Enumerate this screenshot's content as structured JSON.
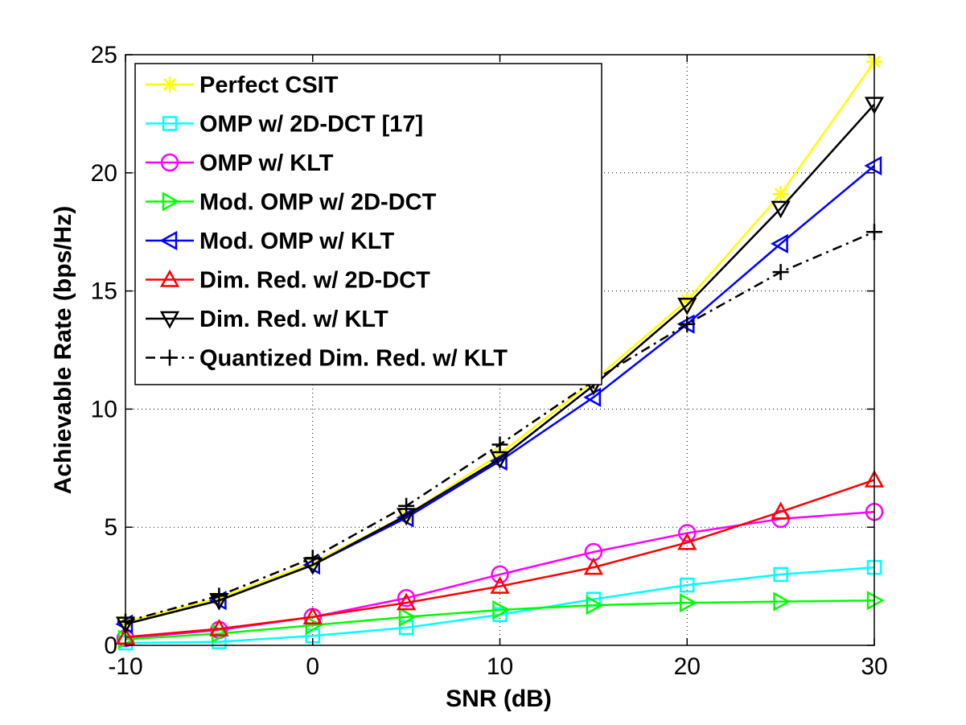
{
  "chart_data": {
    "type": "line",
    "title": "",
    "xlabel": "SNR (dB)",
    "ylabel": "Achievable Rate (bps/Hz)",
    "xlim": [
      -10,
      30
    ],
    "ylim": [
      0,
      25
    ],
    "xticks": [
      -10,
      0,
      10,
      20,
      30
    ],
    "xtick_labels": [
      "-10",
      "0",
      "10",
      "20",
      "30"
    ],
    "yticks": [
      0,
      5,
      10,
      15,
      20,
      25
    ],
    "ytick_labels": [
      "0",
      "5",
      "10",
      "15",
      "20",
      "25"
    ],
    "grid": true,
    "legend_position": "top-left",
    "x": [
      -10,
      -5,
      0,
      5,
      10,
      15,
      20,
      25,
      30
    ],
    "series": [
      {
        "name": "Perfect CSIT",
        "color": "#ffff00",
        "marker": "asterisk",
        "dash": "solid",
        "values": [
          1.0,
          2.0,
          3.5,
          5.5,
          8.1,
          11.2,
          14.6,
          19.1,
          24.7
        ]
      },
      {
        "name": "OMP w/ 2D-DCT [17]",
        "color": "#00ffff",
        "marker": "square",
        "dash": "solid",
        "values": [
          0.1,
          0.15,
          0.4,
          0.75,
          1.3,
          1.95,
          2.55,
          3.0,
          3.3
        ]
      },
      {
        "name": "OMP w/ KLT",
        "color": "#ff00ff",
        "marker": "circle",
        "dash": "solid",
        "values": [
          0.3,
          0.65,
          1.2,
          2.0,
          3.0,
          3.95,
          4.75,
          5.35,
          5.65
        ]
      },
      {
        "name": "Mod. OMP w/ 2D-DCT",
        "color": "#00ff00",
        "marker": "triangle-right",
        "dash": "solid",
        "values": [
          0.25,
          0.5,
          0.85,
          1.2,
          1.5,
          1.7,
          1.8,
          1.85,
          1.9
        ]
      },
      {
        "name": "Mod. OMP w/ KLT",
        "color": "#0000ff",
        "marker": "triangle-left",
        "dash": "solid",
        "values": [
          0.9,
          1.9,
          3.4,
          5.4,
          7.8,
          10.5,
          13.6,
          17.0,
          20.3
        ]
      },
      {
        "name": "Dim. Red. w/ 2D-DCT",
        "color": "#ff0000",
        "marker": "triangle-up",
        "dash": "solid",
        "values": [
          0.35,
          0.7,
          1.2,
          1.8,
          2.5,
          3.3,
          4.35,
          5.65,
          7.0
        ]
      },
      {
        "name": "Dim. Red. w/ KLT",
        "color": "#000000",
        "marker": "triangle-down",
        "dash": "solid",
        "values": [
          0.9,
          1.9,
          3.4,
          5.5,
          7.9,
          11.0,
          14.4,
          18.5,
          22.9
        ]
      },
      {
        "name": "Quantized Dim. Red. w/ KLT",
        "color": "#000000",
        "marker": "plus",
        "dash": "dashdot",
        "values": [
          1.0,
          2.1,
          3.7,
          5.9,
          8.5,
          11.2,
          13.6,
          15.8,
          17.5
        ]
      }
    ]
  }
}
